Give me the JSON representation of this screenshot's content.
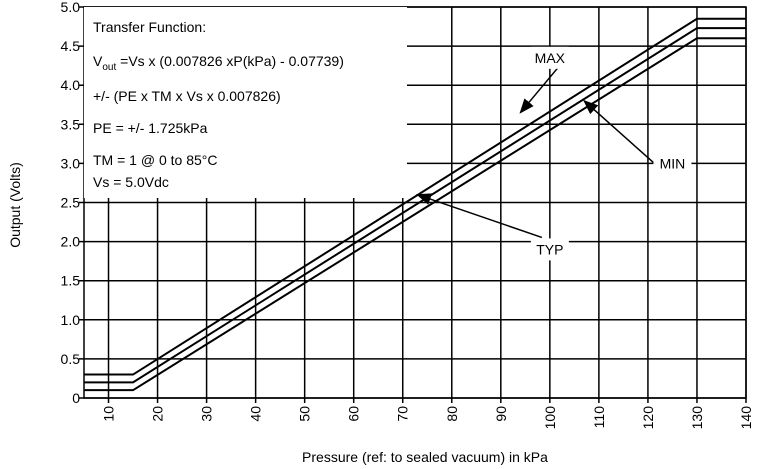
{
  "chart_data": {
    "type": "line",
    "xlabel": "Pressure (ref: to sealed vacuum) in kPa",
    "ylabel": "Output (Volts)",
    "xlim": [
      5,
      140
    ],
    "ylim": [
      0,
      5.0
    ],
    "x_ticks": [
      "10",
      "20",
      "30",
      "40",
      "50",
      "60",
      "70",
      "80",
      "90",
      "100",
      "110",
      "120",
      "130",
      "140"
    ],
    "y_ticks": [
      "0",
      "0.5",
      "1.0",
      "1.5",
      "2.0",
      "2.5",
      "3.0",
      "3.5",
      "4.0",
      "4.5",
      "5.0"
    ],
    "grid": true,
    "series": [
      {
        "name": "MAX",
        "x": [
          5,
          15,
          130,
          140
        ],
        "y": [
          0.3,
          0.3,
          4.85,
          4.85
        ]
      },
      {
        "name": "TYP",
        "x": [
          5,
          15,
          130,
          140
        ],
        "y": [
          0.2,
          0.2,
          4.73,
          4.73
        ]
      },
      {
        "name": "MIN",
        "x": [
          5,
          15,
          130,
          140
        ],
        "y": [
          0.1,
          0.1,
          4.6,
          4.6
        ]
      }
    ],
    "annotations": [
      {
        "text": "MAX",
        "label_x": 100,
        "label_y": 4.35,
        "point_x": 94,
        "point_y": 3.65
      },
      {
        "text": "MIN",
        "label_x": 125,
        "label_y": 3.0,
        "point_x": 107,
        "point_y": 3.8
      },
      {
        "text": "TYP",
        "label_x": 100,
        "label_y": 1.9,
        "point_x": 73,
        "point_y": 2.6
      }
    ],
    "textbox": {
      "line1": "Transfer Function:",
      "line2_prefix": "V",
      "line2_sub": "out",
      "line2_rest": " =Vs x (0.007826 xP(kPa) - 0.07739)",
      "line3": "+/- (PE x TM x Vs x 0.007826)",
      "line4": "PE = +/- 1.725kPa",
      "line5": "TM = 1 @ 0 to 85°C",
      "line6": "Vs = 5.0Vdc"
    }
  }
}
